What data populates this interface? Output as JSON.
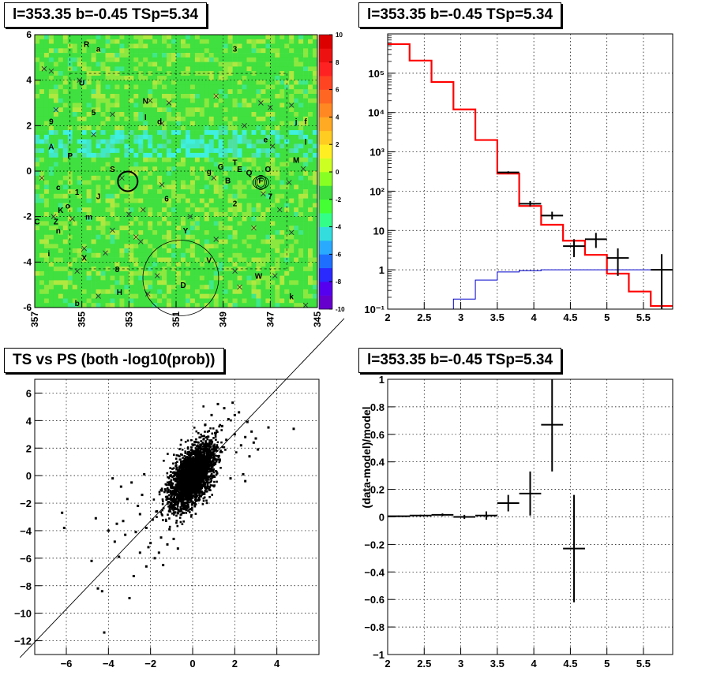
{
  "titles": {
    "skymap": "l=353.35 b=-0.45 TSp=5.34",
    "spectrum": "l=353.35 b=-0.45 TSp=5.34",
    "scatter": "TS vs PS (both -log10(prob))",
    "residual": "l=353.35 b=-0.45 TSp=5.34"
  },
  "colors": {
    "model": "#ff0000",
    "data": "#000000",
    "background_model": "#0000cc",
    "map_green": "#3fe03f",
    "grid": "#000000"
  },
  "chart_data": [
    {
      "type": "heatmap",
      "title": "l=353.35 b=-0.45 TSp=5.34",
      "xlim": [
        357,
        345
      ],
      "ylim": [
        -6,
        6
      ],
      "xticks": [
        "357",
        "355",
        "353",
        "351",
        "349",
        "347",
        "345"
      ],
      "yticks": [
        "-6",
        "-4",
        "-2",
        "0",
        "2",
        "4",
        "6"
      ],
      "colorbar": {
        "range": [
          -10,
          10
        ],
        "ticks": [
          "-10",
          "-8",
          "-6",
          "-4",
          "-2",
          "0",
          "2",
          "4",
          "6",
          "8",
          "10"
        ]
      },
      "grid": true,
      "source_labels": [
        {
          "text": "R",
          "l": 354.8,
          "b": 5.6
        },
        {
          "text": "a",
          "l": 354.3,
          "b": 5.4
        },
        {
          "text": "3",
          "l": 348.5,
          "b": 5.4
        },
        {
          "text": "U",
          "l": 355.0,
          "b": 3.9
        },
        {
          "text": "N",
          "l": 352.3,
          "b": 3.1
        },
        {
          "text": "5",
          "l": 354.5,
          "b": 2.6
        },
        {
          "text": "I",
          "l": 352.3,
          "b": 2.4
        },
        {
          "text": "d",
          "l": 351.7,
          "b": 2.2
        },
        {
          "text": "9",
          "l": 356.3,
          "b": 2.2
        },
        {
          "text": "j",
          "l": 345.9,
          "b": 2.2
        },
        {
          "text": "f",
          "l": 345.5,
          "b": 2.2
        },
        {
          "text": "e",
          "l": 347.2,
          "b": 1.4
        },
        {
          "text": "l",
          "l": 345.5,
          "b": 1.3
        },
        {
          "text": "A",
          "l": 356.3,
          "b": 1.1
        },
        {
          "text": "P",
          "l": 355.5,
          "b": 0.7
        },
        {
          "text": "M",
          "l": 345.9,
          "b": 0.5
        },
        {
          "text": "T",
          "l": 348.5,
          "b": 0.4
        },
        {
          "text": "S",
          "l": 353.7,
          "b": 0.1
        },
        {
          "text": "G",
          "l": 349.1,
          "b": 0.2
        },
        {
          "text": "E",
          "l": 348.3,
          "b": 0.1
        },
        {
          "text": "Q",
          "l": 347.9,
          "b": -0.05
        },
        {
          "text": "O",
          "l": 347.1,
          "b": 0.1
        },
        {
          "text": "g",
          "l": 349.6,
          "b": 0.0
        },
        {
          "text": "B",
          "l": 348.8,
          "b": -0.4
        },
        {
          "text": "F",
          "l": 347.4,
          "b": -0.4
        },
        {
          "text": "c",
          "l": 356.0,
          "b": -0.7
        },
        {
          "text": "1",
          "l": 355.2,
          "b": -0.9
        },
        {
          "text": "J",
          "l": 354.3,
          "b": -1.1
        },
        {
          "text": "6",
          "l": 351.4,
          "b": -1.2
        },
        {
          "text": "2",
          "l": 348.5,
          "b": -1.4
        },
        {
          "text": "7",
          "l": 347.0,
          "b": -1.1
        },
        {
          "text": "K",
          "l": 355.9,
          "b": -1.7
        },
        {
          "text": "o",
          "l": 355.6,
          "b": -1.5
        },
        {
          "text": "m",
          "l": 354.7,
          "b": -2.0
        },
        {
          "text": "C",
          "l": 356.9,
          "b": -2.2
        },
        {
          "text": "Z",
          "l": 356.1,
          "b": -2.2
        },
        {
          "text": "n",
          "l": 356.0,
          "b": -2.6
        },
        {
          "text": "Y",
          "l": 350.6,
          "b": -2.6
        },
        {
          "text": "i",
          "l": 356.4,
          "b": -3.6
        },
        {
          "text": "X",
          "l": 354.9,
          "b": -3.8
        },
        {
          "text": "V",
          "l": 349.6,
          "b": -3.9
        },
        {
          "text": "8",
          "l": 353.5,
          "b": -4.3
        },
        {
          "text": "W",
          "l": 347.5,
          "b": -4.6
        },
        {
          "text": "D",
          "l": 350.7,
          "b": -5.0
        },
        {
          "text": "H",
          "l": 353.4,
          "b": -5.3
        },
        {
          "text": "k",
          "l": 346.1,
          "b": -5.5
        },
        {
          "text": "b",
          "l": 355.2,
          "b": -5.8
        }
      ]
    },
    {
      "type": "line",
      "title": "l=353.35 b=-0.45 TSp=5.34",
      "log_y": true,
      "xlim": [
        2,
        5.9
      ],
      "ylim": [
        0.1,
        1000000
      ],
      "xticks": [
        "2",
        "2.5",
        "3",
        "3.5",
        "4",
        "4.5",
        "5",
        "5.5"
      ],
      "yticks": [
        "10⁻¹",
        "1",
        "10",
        "10²",
        "10³",
        "10⁴",
        "10⁵"
      ],
      "grid": true,
      "series": [
        {
          "role": "model",
          "steps": [
            {
              "x0": 2.0,
              "x1": 2.3,
              "y": 550000
            },
            {
              "x0": 2.3,
              "x1": 2.6,
              "y": 210000
            },
            {
              "x0": 2.6,
              "x1": 2.9,
              "y": 60000
            },
            {
              "x0": 2.9,
              "x1": 3.2,
              "y": 12000
            },
            {
              "x0": 3.2,
              "x1": 3.5,
              "y": 2000
            },
            {
              "x0": 3.5,
              "x1": 3.8,
              "y": 280
            },
            {
              "x0": 3.8,
              "x1": 4.1,
              "y": 42
            },
            {
              "x0": 4.1,
              "x1": 4.4,
              "y": 14
            },
            {
              "x0": 4.4,
              "x1": 4.7,
              "y": 5.5
            },
            {
              "x0": 4.7,
              "x1": 5.0,
              "y": 2.4
            },
            {
              "x0": 5.0,
              "x1": 5.3,
              "y": 0.8
            },
            {
              "x0": 5.3,
              "x1": 5.6,
              "y": 0.28
            },
            {
              "x0": 5.6,
              "x1": 5.9,
              "y": 0.12
            }
          ]
        },
        {
          "role": "background_model",
          "steps": [
            {
              "x0": 2.9,
              "x1": 3.2,
              "y": 0.18
            },
            {
              "x0": 3.2,
              "x1": 3.5,
              "y": 0.55
            },
            {
              "x0": 3.5,
              "x1": 3.8,
              "y": 0.88
            },
            {
              "x0": 3.8,
              "x1": 4.1,
              "y": 0.95
            },
            {
              "x0": 4.1,
              "x1": 5.9,
              "y": 1.0
            }
          ]
        },
        {
          "role": "data",
          "points": [
            {
              "x": 3.65,
              "y": 300,
              "xerr": 0.15,
              "ylo": 280,
              "yhi": 320
            },
            {
              "x": 3.95,
              "y": 48,
              "xerr": 0.15,
              "ylo": 41,
              "yhi": 56
            },
            {
              "x": 4.25,
              "y": 24,
              "xerr": 0.15,
              "ylo": 19,
              "yhi": 30
            },
            {
              "x": 4.55,
              "y": 4,
              "xerr": 0.15,
              "ylo": 2.1,
              "yhi": 6.0
            },
            {
              "x": 4.85,
              "y": 6,
              "xerr": 0.15,
              "ylo": 3.6,
              "yhi": 8.7
            },
            {
              "x": 5.15,
              "y": 2,
              "xerr": 0.15,
              "ylo": 0.7,
              "yhi": 3.5
            },
            {
              "x": 5.75,
              "y": 1,
              "xerr": 0.15,
              "ylo": 0.1,
              "yhi": 2.5
            }
          ]
        }
      ]
    },
    {
      "type": "scatter",
      "title": "TS vs PS (both -log10(prob))",
      "xlim": [
        -7.5,
        6
      ],
      "ylim": [
        -13,
        7
      ],
      "xticks": [
        "−6",
        "−4",
        "−2",
        "0",
        "2",
        "4"
      ],
      "yticks": [
        "−12",
        "−10",
        "−8",
        "−6",
        "−4",
        "−2",
        "0",
        "2",
        "4",
        "6"
      ],
      "grid": true,
      "core": {
        "center": [
          0,
          0
        ],
        "sx": 0.55,
        "sy": 1.2,
        "count": 2600
      },
      "outliers": [
        [
          -6.2,
          -2.7
        ],
        [
          -6.1,
          -3.8
        ],
        [
          -4.8,
          -6.2
        ],
        [
          -4.5,
          -8.2
        ],
        [
          -4.3,
          -8.4
        ],
        [
          -4.2,
          -11.4
        ],
        [
          -3.5,
          -5.9
        ],
        [
          -3.0,
          -8.9
        ],
        [
          -2.8,
          -7.3
        ],
        [
          -3.2,
          -4.3
        ],
        [
          -4.0,
          -4.0
        ],
        [
          -3.6,
          -3.5
        ],
        [
          -2.7,
          -4.1
        ],
        [
          -3.3,
          -3.3
        ],
        [
          -2.5,
          -2.8
        ],
        [
          -2.6,
          -2.2
        ],
        [
          -3.1,
          -1.7
        ],
        [
          -2.9,
          -0.5
        ],
        [
          -3.8,
          -0.2
        ],
        [
          -2.3,
          0.1
        ],
        [
          -3.4,
          -0.8
        ],
        [
          -2.1,
          -5.2
        ],
        [
          -1.8,
          -6.0
        ],
        [
          -1.6,
          -5.6
        ],
        [
          -1.4,
          -6.5
        ],
        [
          -2.0,
          -4.9
        ],
        [
          -1.5,
          -4.5
        ],
        [
          -2.2,
          -3.8
        ],
        [
          -1.9,
          -3.2
        ],
        [
          -1.2,
          -5.0
        ],
        [
          -0.9,
          -4.6
        ],
        [
          -0.7,
          -5.3
        ],
        [
          -1.1,
          -3.9
        ],
        [
          -1.7,
          -2.6
        ],
        [
          -2.4,
          -1.4
        ],
        [
          -1.3,
          -1.0
        ],
        [
          -4.6,
          -3.1
        ],
        [
          -2.2,
          -6.6
        ],
        [
          -2.5,
          -5.6
        ],
        [
          -3.7,
          -4.8
        ],
        [
          3.6,
          3.5
        ],
        [
          4.8,
          3.4
        ],
        [
          2.6,
          3.9
        ],
        [
          2.2,
          4.6
        ],
        [
          1.9,
          5.3
        ],
        [
          2.0,
          4.4
        ],
        [
          1.2,
          5.2
        ],
        [
          1.5,
          4.9
        ],
        [
          2.5,
          2.8
        ],
        [
          2.9,
          2.4
        ],
        [
          3.1,
          1.9
        ],
        [
          2.7,
          1.4
        ],
        [
          2.4,
          0.1
        ],
        [
          2.5,
          -0.4
        ],
        [
          1.8,
          -0.2
        ],
        [
          2.0,
          3.0
        ],
        [
          1.4,
          3.6
        ],
        [
          0.9,
          4.4
        ],
        [
          1.7,
          4.1
        ],
        [
          2.8,
          3.2
        ],
        [
          3.0,
          2.7
        ],
        [
          2.3,
          2.2
        ],
        [
          1.6,
          2.6
        ],
        [
          1.1,
          3.1
        ],
        [
          0.6,
          3.7
        ]
      ],
      "fit_line": {
        "slope": 1.6,
        "intercept": -0.1
      }
    },
    {
      "type": "scatter",
      "title": "l=353.35 b=-0.45 TSp=5.34",
      "xlim": [
        2,
        5.9
      ],
      "ylim": [
        -1,
        1
      ],
      "ylabel": "(data-model)/model",
      "xticks": [
        "2",
        "2.5",
        "3",
        "3.5",
        "4",
        "4.5",
        "5",
        "5.5"
      ],
      "yticks": [
        "−1",
        "−0.8",
        "−0.6",
        "−0.4",
        "−0.2",
        "0",
        "0.2",
        "0.4",
        "0.6",
        "0.8",
        "1"
      ],
      "grid": true,
      "points": [
        {
          "x": 2.15,
          "y": 0.005,
          "xerr": 0.15,
          "yerr": 0.005
        },
        {
          "x": 2.45,
          "y": 0.01,
          "xerr": 0.15,
          "yerr": 0.006
        },
        {
          "x": 2.75,
          "y": 0.015,
          "xerr": 0.15,
          "yerr": 0.01
        },
        {
          "x": 3.05,
          "y": 0.0,
          "xerr": 0.15,
          "yerr": 0.015
        },
        {
          "x": 3.35,
          "y": 0.01,
          "xerr": 0.15,
          "yerr": 0.03
        },
        {
          "x": 3.65,
          "y": 0.1,
          "xerr": 0.15,
          "yerr": 0.06
        },
        {
          "x": 3.95,
          "y": 0.17,
          "xerr": 0.15,
          "yerr": 0.16
        },
        {
          "x": 4.25,
          "y": 0.67,
          "xerr": 0.15,
          "yerr": 0.34
        },
        {
          "x": 4.55,
          "y": -0.23,
          "xerr": 0.15,
          "yerr": 0.39
        }
      ]
    }
  ]
}
